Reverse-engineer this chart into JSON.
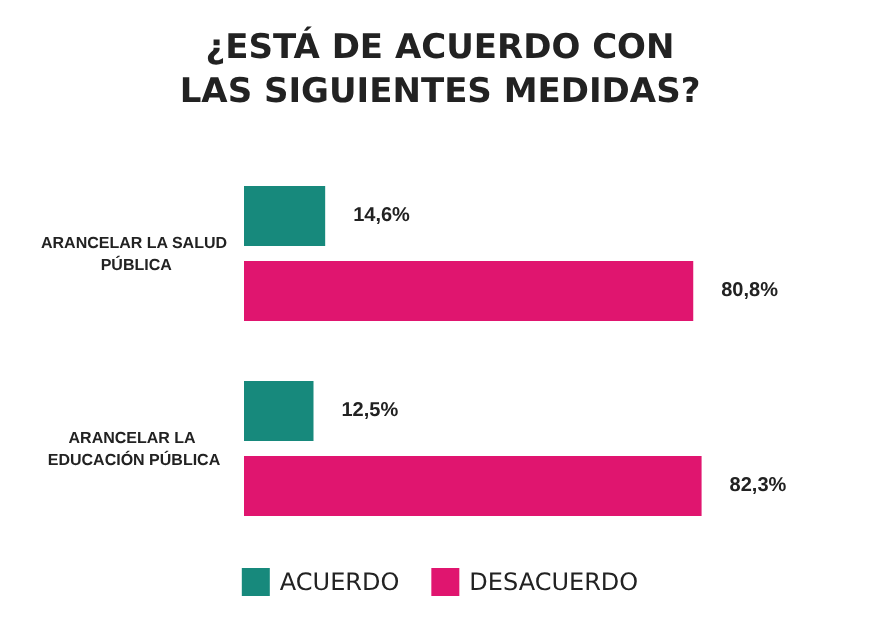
{
  "chart_data": {
    "type": "bar",
    "orientation": "horizontal",
    "title": "¿ESTÁ DE ACUERDO CON\nLAS SIGUIENTES MEDIDAS?",
    "categories": [
      "ARANCELAR LA SALUD PÚBLICA",
      "ARANCELAR LA EDUCACIÓN PÚBLICA"
    ],
    "series": [
      {
        "name": "ACUERDO",
        "color": "#17897c",
        "values": [
          14.6,
          12.5
        ],
        "value_labels": [
          "14,6%",
          "12,5%"
        ]
      },
      {
        "name": "DESACUERDO",
        "color": "#e0156f",
        "values": [
          80.8,
          82.3
        ],
        "value_labels": [
          "80,8%",
          "82,3%"
        ]
      }
    ],
    "tick_labels": "y",
    "legend": "bottom"
  }
}
